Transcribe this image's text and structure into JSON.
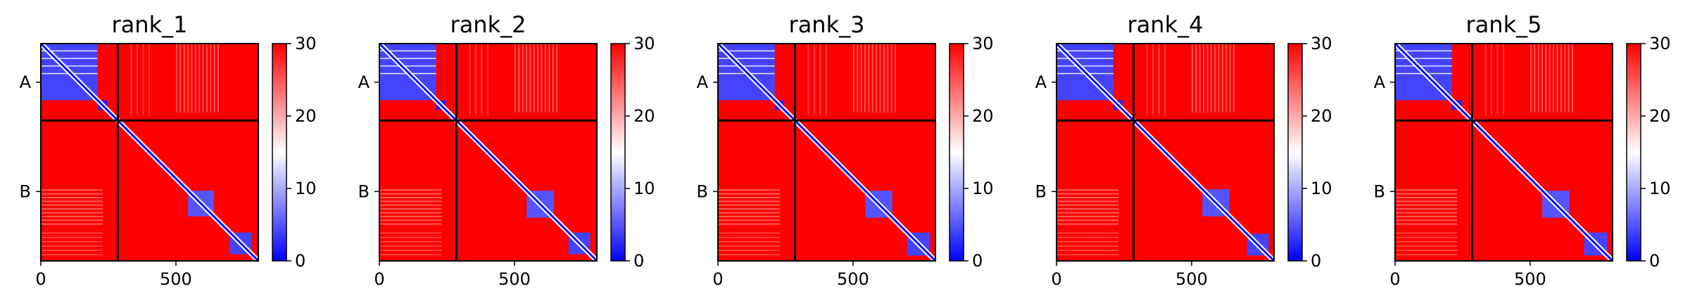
{
  "colorbar": {
    "stops": [
      {
        "value": 0,
        "color": "#0000ff"
      },
      {
        "value": 15,
        "color": "#ffffff"
      },
      {
        "value": 30,
        "color": "#ff0000"
      }
    ]
  },
  "colors": {
    "low": "#0000ff",
    "mid": "#ffffff",
    "high": "#ff0000",
    "divider": "#000000"
  },
  "chart_data": [
    {
      "type": "heatmap",
      "title": "rank_1",
      "x_ticks": [
        0,
        500
      ],
      "xlim": [
        0,
        805
      ],
      "ylim": [
        805,
        0
      ],
      "y_tick_labels": [
        {
          "label": "A",
          "position": 143
        },
        {
          "label": "B",
          "position": 548
        }
      ],
      "chain_boundary": 285,
      "value_range": [
        0,
        30
      ],
      "colorbar_ticks": [
        0,
        10,
        20,
        30
      ],
      "low_error_blocks": [
        {
          "start": 0,
          "end": 210,
          "value": 4
        },
        {
          "start": 210,
          "end": 245,
          "value": 2
        },
        {
          "start": 545,
          "end": 640,
          "value": 5
        },
        {
          "start": 700,
          "end": 780,
          "value": 4
        }
      ],
      "off_diagonal_value": 30,
      "diagonal_value": 1
    },
    {
      "type": "heatmap",
      "title": "rank_2",
      "x_ticks": [
        0,
        500
      ],
      "xlim": [
        0,
        805
      ],
      "ylim": [
        805,
        0
      ],
      "y_tick_labels": [
        {
          "label": "A",
          "position": 143
        },
        {
          "label": "B",
          "position": 548
        }
      ],
      "chain_boundary": 285,
      "value_range": [
        0,
        30
      ],
      "colorbar_ticks": [
        0,
        10,
        20,
        30
      ],
      "low_error_blocks": [
        {
          "start": 0,
          "end": 210,
          "value": 4
        },
        {
          "start": 210,
          "end": 245,
          "value": 2
        },
        {
          "start": 545,
          "end": 645,
          "value": 5
        },
        {
          "start": 700,
          "end": 780,
          "value": 4
        }
      ],
      "off_diagonal_value": 30,
      "diagonal_value": 1
    },
    {
      "type": "heatmap",
      "title": "rank_3",
      "x_ticks": [
        0,
        500
      ],
      "xlim": [
        0,
        805
      ],
      "ylim": [
        805,
        0
      ],
      "y_tick_labels": [
        {
          "label": "A",
          "position": 143
        },
        {
          "label": "B",
          "position": 548
        }
      ],
      "chain_boundary": 285,
      "value_range": [
        0,
        30
      ],
      "colorbar_ticks": [
        0,
        10,
        20,
        30
      ],
      "low_error_blocks": [
        {
          "start": 0,
          "end": 210,
          "value": 4
        },
        {
          "start": 210,
          "end": 245,
          "value": 2
        },
        {
          "start": 545,
          "end": 645,
          "value": 5
        },
        {
          "start": 700,
          "end": 785,
          "value": 4
        }
      ],
      "off_diagonal_value": 30,
      "diagonal_value": 1
    },
    {
      "type": "heatmap",
      "title": "rank_4",
      "x_ticks": [
        0,
        500
      ],
      "xlim": [
        0,
        805
      ],
      "ylim": [
        805,
        0
      ],
      "y_tick_labels": [
        {
          "label": "A",
          "position": 143
        },
        {
          "label": "B",
          "position": 548
        }
      ],
      "chain_boundary": 285,
      "value_range": [
        0,
        30
      ],
      "colorbar_ticks": [
        0,
        10,
        20,
        30
      ],
      "low_error_blocks": [
        {
          "start": 0,
          "end": 210,
          "value": 4
        },
        {
          "start": 210,
          "end": 245,
          "value": 2
        },
        {
          "start": 540,
          "end": 640,
          "value": 5
        },
        {
          "start": 705,
          "end": 785,
          "value": 4
        }
      ],
      "off_diagonal_value": 30,
      "diagonal_value": 1
    },
    {
      "type": "heatmap",
      "title": "rank_5",
      "x_ticks": [
        0,
        500
      ],
      "xlim": [
        0,
        805
      ],
      "ylim": [
        805,
        0
      ],
      "y_tick_labels": [
        {
          "label": "A",
          "position": 143
        },
        {
          "label": "B",
          "position": 548
        }
      ],
      "chain_boundary": 285,
      "value_range": [
        0,
        30
      ],
      "colorbar_ticks": [
        0,
        10,
        20,
        30
      ],
      "low_error_blocks": [
        {
          "start": 0,
          "end": 210,
          "value": 4
        },
        {
          "start": 210,
          "end": 245,
          "value": 2
        },
        {
          "start": 545,
          "end": 645,
          "value": 5
        },
        {
          "start": 700,
          "end": 785,
          "value": 4
        }
      ],
      "off_diagonal_value": 30,
      "diagonal_value": 1
    }
  ]
}
